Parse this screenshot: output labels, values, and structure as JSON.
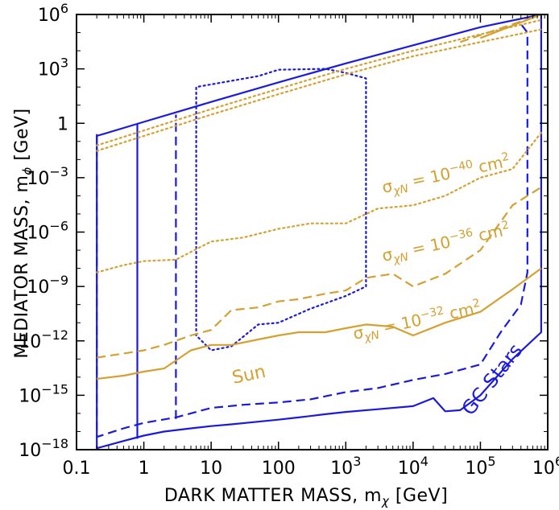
{
  "chart_data": {
    "type": "line",
    "xlabel": "DARK MATTER MASS, m",
    "xlabel_sub": "χ",
    "xlabel_unit": " [GeV]",
    "ylabel": "MEDIATOR MASS, m",
    "ylabel_sub": "ϕ",
    "ylabel_unit": " [GeV]",
    "x_scale": "log",
    "y_scale": "log",
    "xlim": [
      0.1,
      1000000
    ],
    "ylim": [
      1e-18,
      1000000
    ],
    "grid": false,
    "x_ticks": [
      {
        "value": 0.1,
        "label": "0.1"
      },
      {
        "value": 1,
        "label": "1"
      },
      {
        "value": 10,
        "label": "10"
      },
      {
        "value": 100,
        "label": "100"
      },
      {
        "value": 1000,
        "base": "10",
        "exp": "3"
      },
      {
        "value": 10000,
        "base": "10",
        "exp": "4"
      },
      {
        "value": 100000,
        "base": "10",
        "exp": "5"
      },
      {
        "value": 1000000,
        "base": "10",
        "exp": "6"
      }
    ],
    "y_ticks": [
      {
        "value": 1e-18,
        "base": "10",
        "exp": "−18"
      },
      {
        "value": 1e-15,
        "base": "10",
        "exp": "−15"
      },
      {
        "value": 1e-12,
        "base": "10",
        "exp": "−12"
      },
      {
        "value": 1e-09,
        "base": "10",
        "exp": "−9"
      },
      {
        "value": 1e-06,
        "base": "10",
        "exp": "−6"
      },
      {
        "value": 0.001,
        "base": "10",
        "exp": "−3"
      },
      {
        "value": 1,
        "label": "1"
      },
      {
        "value": 1000,
        "base": "10",
        "exp": "3"
      },
      {
        "value": 1000000,
        "base": "10",
        "exp": "6"
      }
    ],
    "colors": {
      "sun": "#d4a030",
      "gc_stars": "#1a1adc"
    },
    "series": [
      {
        "group": "GC Stars",
        "dash": "solid",
        "color": "#1a1adc",
        "points": [
          [
            0.2,
            0.2
          ],
          [
            0.2,
            1.2e-18
          ],
          [
            0.5,
            3e-18
          ],
          [
            1,
            6e-18
          ],
          [
            2,
            1e-17
          ],
          [
            5,
            1.5e-17
          ],
          [
            10,
            2e-17
          ],
          [
            20,
            2.5e-17
          ],
          [
            50,
            3.5e-17
          ],
          [
            100,
            4.5e-17
          ],
          [
            200,
            6e-17
          ],
          [
            500,
            9e-17
          ],
          [
            1000,
            1.2e-16
          ],
          [
            3000,
            1.7e-16
          ],
          [
            10000,
            2.5e-16
          ],
          [
            20000,
            7e-16
          ],
          [
            30000,
            1.3e-16
          ],
          [
            50000,
            1.5e-16
          ],
          [
            100000,
            1e-15
          ],
          [
            300000,
            1e-13
          ],
          [
            800000,
            3e-12
          ],
          [
            800000,
            1000000.0
          ]
        ]
      },
      {
        "group": "GC Stars",
        "dash": "solid",
        "color": "#1a1adc",
        "points": [
          [
            0.2,
            0.2
          ],
          [
            1,
            1.2
          ],
          [
            10,
            15
          ],
          [
            100,
            180
          ],
          [
            1000,
            2000
          ],
          [
            10000,
            20000
          ],
          [
            100000,
            200000
          ],
          [
            800000,
            1000000.0
          ]
        ]
      },
      {
        "group": "GC Stars",
        "dash": "solid",
        "color": "#1a1adc",
        "points": [
          [
            0.8,
            4e-18
          ],
          [
            0.8,
            1
          ]
        ]
      },
      {
        "group": "GC Stars",
        "dash": "dashed",
        "color": "#1a1adc",
        "points": [
          [
            0.2,
            0.25
          ],
          [
            0.2,
            5e-18
          ],
          [
            0.5,
            1.5e-17
          ],
          [
            1,
            3e-17
          ],
          [
            3,
            6e-17
          ],
          [
            10,
            2e-16
          ],
          [
            30,
            3e-16
          ],
          [
            100,
            4e-16
          ],
          [
            300,
            6e-16
          ],
          [
            1000,
            1.5e-15
          ],
          [
            3000,
            2.5e-15
          ],
          [
            10000,
            7e-15
          ],
          [
            30000,
            1.5e-14
          ],
          [
            100000,
            5e-14
          ],
          [
            200000,
            3e-12
          ],
          [
            400000,
            1e-10
          ],
          [
            500000,
            6e-09
          ],
          [
            500000,
            100000
          ],
          [
            400000,
            300000
          ]
        ]
      },
      {
        "group": "GC Stars",
        "dash": "dashed",
        "color": "#1a1adc",
        "points": [
          [
            3,
            5e-17
          ],
          [
            3,
            3
          ]
        ]
      },
      {
        "group": "GC Stars",
        "dash": "dotted",
        "color": "#1a1adc",
        "points": [
          [
            6,
            2e-12
          ],
          [
            6,
            100
          ],
          [
            50,
            400
          ],
          [
            100,
            900
          ],
          [
            500,
            1000
          ],
          [
            1000,
            600
          ],
          [
            2000,
            300
          ],
          [
            2000,
            1e-09
          ],
          [
            1000,
            3e-10
          ],
          [
            300,
            6e-11
          ],
          [
            100,
            1e-11
          ],
          [
            50,
            8e-12
          ],
          [
            20,
            5e-13
          ],
          [
            10,
            3e-13
          ],
          [
            6,
            2e-12
          ]
        ]
      },
      {
        "group": "Sun",
        "sigma_label": "10^−32 cm^2",
        "dash": "solid",
        "color": "#d4a030",
        "points": [
          [
            0.2,
            8e-15
          ],
          [
            0.5,
            1.2e-14
          ],
          [
            1,
            2e-14
          ],
          [
            2,
            3e-14
          ],
          [
            5,
            3e-13
          ],
          [
            10,
            6e-13
          ],
          [
            20,
            6e-13
          ],
          [
            50,
            1.2e-12
          ],
          [
            100,
            2e-12
          ],
          [
            200,
            3e-12
          ],
          [
            500,
            3e-12
          ],
          [
            1000,
            5e-12
          ],
          [
            2000,
            8e-12
          ],
          [
            5000,
            6e-12
          ],
          [
            10000,
            2e-12
          ],
          [
            30000,
            1e-11
          ],
          [
            100000,
            4e-11
          ],
          [
            300000,
            7e-10
          ],
          [
            800000,
            1e-08
          ]
        ]
      },
      {
        "group": "Sun",
        "sigma_label": "10^−36 cm^2",
        "dash": "dashed",
        "color": "#d4a030",
        "points": [
          [
            0.2,
            1.2e-13
          ],
          [
            0.5,
            2e-13
          ],
          [
            1,
            3e-13
          ],
          [
            2,
            6e-13
          ],
          [
            5,
            2e-12
          ],
          [
            10,
            4e-12
          ],
          [
            20,
            5e-11
          ],
          [
            50,
            7e-11
          ],
          [
            100,
            1.5e-10
          ],
          [
            200,
            2e-10
          ],
          [
            500,
            4e-10
          ],
          [
            1000,
            6e-10
          ],
          [
            2000,
            3e-09
          ],
          [
            5000,
            5e-09
          ],
          [
            10000,
            1e-09
          ],
          [
            30000,
            5e-09
          ],
          [
            100000,
            1e-07
          ],
          [
            300000,
            3e-05
          ],
          [
            800000,
            0.0003
          ]
        ]
      },
      {
        "group": "Sun",
        "sigma_label": "10^−40 cm^2",
        "dash": "dotted",
        "color": "#d4a030",
        "points": [
          [
            0.2,
            6e-09
          ],
          [
            0.5,
            1.5e-08
          ],
          [
            1,
            2.5e-08
          ],
          [
            3,
            3e-08
          ],
          [
            10,
            3e-07
          ],
          [
            30,
            5e-07
          ],
          [
            100,
            1.5e-06
          ],
          [
            300,
            3e-06
          ],
          [
            1000,
            3e-06
          ],
          [
            3000,
            2e-05
          ],
          [
            10000,
            3e-05
          ],
          [
            30000,
            0.0001
          ],
          [
            100000,
            0.001
          ],
          [
            300000,
            0.003
          ],
          [
            800000,
            0.3
          ]
        ]
      },
      {
        "group": "Sun",
        "dash": "solid",
        "color": "#d4a030",
        "points": [
          [
            100000,
            50000
          ],
          [
            800000,
            1000000
          ]
        ]
      },
      {
        "group": "Sun",
        "dash": "dashed",
        "color": "#d4a030",
        "points": [
          [
            50000,
            30000
          ],
          [
            800000,
            1000000
          ]
        ]
      },
      {
        "group": "Sun",
        "dash": "dotted",
        "color": "#d4a030",
        "points": [
          [
            0.2,
            0.03
          ],
          [
            1,
            0.2
          ],
          [
            10,
            3
          ],
          [
            100,
            40
          ],
          [
            1000,
            500
          ],
          [
            10000,
            5000
          ],
          [
            100000,
            30000
          ],
          [
            800000,
            150000
          ]
        ]
      },
      {
        "group": "Sun",
        "dash": "dotted",
        "color": "#d4a030",
        "points": [
          [
            0.2,
            0.06
          ],
          [
            1,
            0.4
          ],
          [
            10,
            6
          ],
          [
            100,
            80
          ],
          [
            1000,
            1000
          ],
          [
            10000,
            10000
          ],
          [
            100000,
            80000
          ],
          [
            800000,
            500000
          ]
        ]
      }
    ],
    "annotations": [
      {
        "text_pre": "σ",
        "text_sub": "χN",
        "text_mid": " = 10",
        "text_exp": "−40",
        "text_post": " cm",
        "text_exp2": "2",
        "color": "#d4a030",
        "angle": -12
      },
      {
        "text_pre": "σ",
        "text_sub": "χN",
        "text_mid": " = 10",
        "text_exp": "−36",
        "text_post": " cm",
        "text_exp2": "2",
        "color": "#d4a030",
        "angle": -12
      },
      {
        "text_pre": "σ",
        "text_sub": "χN",
        "text_mid": " = 10",
        "text_exp": "−32",
        "text_post": " cm",
        "text_exp2": "2",
        "color": "#d4a030",
        "angle": -12
      },
      {
        "text": "Sun",
        "color": "#d4a030",
        "angle": -12
      },
      {
        "text": "GC Stars",
        "color": "#1a1adc",
        "angle": -52
      }
    ]
  }
}
